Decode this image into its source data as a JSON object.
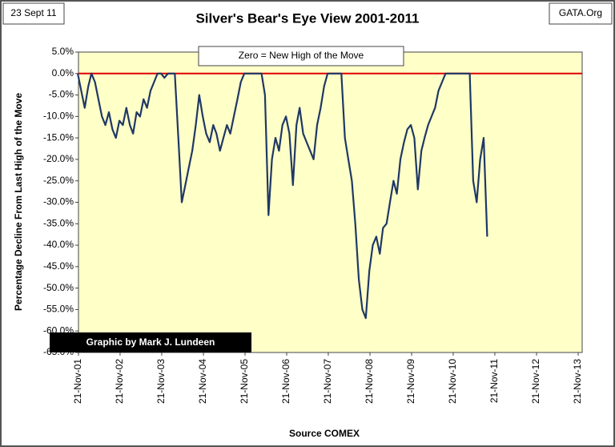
{
  "chart_data": {
    "type": "line",
    "title": "Silver's Bear's Eye View 2001-2011",
    "date_label": "23 Sept 11",
    "source_site": "GATA.Org",
    "annotation": "Zero = New High of the Move",
    "credit": "Graphic by Mark J. Lundeen",
    "x_label": "Source COMEX",
    "y_label": "Percentage Decline From Last High of the Move",
    "plot_background": "#ffffc8",
    "reference_line": {
      "value": 0,
      "color": "#e00000"
    },
    "x": [
      "2001-11",
      "2001-12",
      "2002-01",
      "2002-02",
      "2002-03",
      "2002-04",
      "2002-05",
      "2002-06",
      "2002-07",
      "2002-08",
      "2002-09",
      "2002-10",
      "2002-11",
      "2002-12",
      "2003-01",
      "2003-02",
      "2003-03",
      "2003-04",
      "2003-05",
      "2003-06",
      "2003-07",
      "2003-08",
      "2003-09",
      "2003-10",
      "2003-11",
      "2003-12",
      "2004-01",
      "2004-02",
      "2004-03",
      "2004-04",
      "2004-05",
      "2004-06",
      "2004-07",
      "2004-08",
      "2004-09",
      "2004-10",
      "2004-11",
      "2004-12",
      "2005-01",
      "2005-02",
      "2005-03",
      "2005-04",
      "2005-05",
      "2005-06",
      "2005-07",
      "2005-08",
      "2005-09",
      "2005-10",
      "2005-11",
      "2005-12",
      "2006-01",
      "2006-02",
      "2006-03",
      "2006-04",
      "2006-05",
      "2006-06",
      "2006-07",
      "2006-08",
      "2006-09",
      "2006-10",
      "2006-11",
      "2006-12",
      "2007-01",
      "2007-02",
      "2007-03",
      "2007-04",
      "2007-05",
      "2007-06",
      "2007-07",
      "2007-08",
      "2007-09",
      "2007-10",
      "2007-11",
      "2007-12",
      "2008-01",
      "2008-02",
      "2008-03",
      "2008-04",
      "2008-05",
      "2008-06",
      "2008-07",
      "2008-08",
      "2008-09",
      "2008-10",
      "2008-11",
      "2008-12",
      "2009-01",
      "2009-02",
      "2009-03",
      "2009-04",
      "2009-05",
      "2009-06",
      "2009-07",
      "2009-08",
      "2009-09",
      "2009-10",
      "2009-11",
      "2009-12",
      "2010-01",
      "2010-02",
      "2010-03",
      "2010-04",
      "2010-05",
      "2010-06",
      "2010-07",
      "2010-08",
      "2010-09",
      "2010-10",
      "2010-11",
      "2010-12",
      "2011-01",
      "2011-02",
      "2011-03",
      "2011-04",
      "2011-05",
      "2011-06",
      "2011-07",
      "2011-08",
      "2011-09"
    ],
    "series": [
      {
        "name": "Silver",
        "color": "#1f3864",
        "values": [
          0,
          -4,
          -8,
          -3,
          0,
          -2,
          -6,
          -10,
          -12,
          -9,
          -13,
          -15,
          -11,
          -12,
          -8,
          -12,
          -14,
          -9,
          -10,
          -6,
          -8,
          -4,
          -2,
          0,
          0,
          -1,
          0,
          0,
          0,
          -15,
          -30,
          -26,
          -22,
          -18,
          -12,
          -5,
          -10,
          -14,
          -16,
          -12,
          -14,
          -18,
          -15,
          -12,
          -14,
          -10,
          -6,
          -2,
          0,
          0,
          0,
          0,
          0,
          0,
          -5,
          -33,
          -20,
          -15,
          -18,
          -12,
          -10,
          -14,
          -26,
          -12,
          -8,
          -14,
          -16,
          -18,
          -20,
          -12,
          -8,
          -3,
          0,
          0,
          0,
          0,
          0,
          -15,
          -20,
          -25,
          -35,
          -48,
          -55,
          -57,
          -46,
          -40,
          -38,
          -42,
          -36,
          -35,
          -30,
          -25,
          -28,
          -20,
          -16,
          -13,
          -12,
          -15,
          -27,
          -18,
          -15,
          -12,
          -10,
          -8,
          -4,
          -2,
          0,
          0,
          0,
          0,
          0,
          0,
          0,
          0,
          -25,
          -30,
          -20,
          -15,
          -38
        ]
      }
    ],
    "xlim": [
      "2001-11-21",
      "2013-11-21"
    ],
    "xticks": [
      {
        "value": "2001-11-21",
        "label": "21-Nov-01"
      },
      {
        "value": "2002-11-21",
        "label": "21-Nov-02"
      },
      {
        "value": "2003-11-21",
        "label": "21-Nov-03"
      },
      {
        "value": "2004-11-21",
        "label": "21-Nov-04"
      },
      {
        "value": "2005-11-21",
        "label": "21-Nov-05"
      },
      {
        "value": "2006-11-21",
        "label": "21-Nov-06"
      },
      {
        "value": "2007-11-21",
        "label": "21-Nov-07"
      },
      {
        "value": "2008-11-21",
        "label": "21-Nov-08"
      },
      {
        "value": "2009-11-21",
        "label": "21-Nov-09"
      },
      {
        "value": "2010-11-21",
        "label": "21-Nov-10"
      },
      {
        "value": "2011-11-21",
        "label": "21-Nov-11"
      },
      {
        "value": "2012-11-21",
        "label": "21-Nov-12"
      },
      {
        "value": "2013-11-21",
        "label": "21-Nov-13"
      }
    ],
    "ylim": [
      -65,
      5
    ],
    "yticks": [
      {
        "value": 5,
        "label": "5.0%"
      },
      {
        "value": 0,
        "label": "0.0%"
      },
      {
        "value": -5,
        "label": "-5.0%"
      },
      {
        "value": -10,
        "label": "-10.0%"
      },
      {
        "value": -15,
        "label": "-15.0%"
      },
      {
        "value": -20,
        "label": "-20.0%"
      },
      {
        "value": -25,
        "label": "-25.0%"
      },
      {
        "value": -30,
        "label": "-30.0%"
      },
      {
        "value": -35,
        "label": "-35.0%"
      },
      {
        "value": -40,
        "label": "-40.0%"
      },
      {
        "value": -45,
        "label": "-45.0%"
      },
      {
        "value": -50,
        "label": "-50.0%"
      },
      {
        "value": -55,
        "label": "-55.0%"
      },
      {
        "value": -60,
        "label": "-60.0%"
      },
      {
        "value": -65,
        "label": "-65.0%"
      }
    ]
  }
}
